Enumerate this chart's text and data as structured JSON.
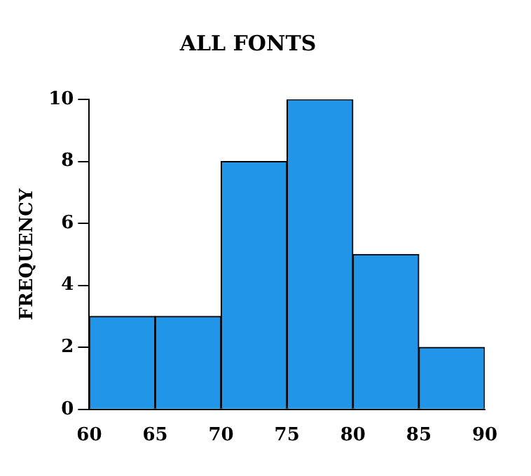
{
  "chart_data": {
    "type": "histogram",
    "title": "ALL FONTS",
    "ylabel": "FREQUENCY",
    "bins": [
      60,
      65,
      70,
      75,
      80,
      85,
      90
    ],
    "values": [
      3,
      3,
      8,
      10,
      5,
      2
    ],
    "color": "#2196e8",
    "xlim": [
      60,
      90
    ],
    "xticks": [
      60,
      65,
      70,
      75,
      80,
      85,
      90
    ],
    "ylim": [
      0,
      10
    ],
    "yticks": [
      0,
      2,
      4,
      6,
      8,
      10
    ],
    "grid": false,
    "legend": false
  }
}
